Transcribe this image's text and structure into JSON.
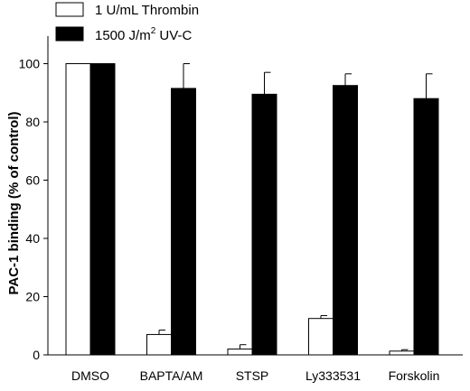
{
  "chart_data": {
    "type": "bar",
    "ylabel": "PAC-1 binding (% of control)",
    "xlabel": "",
    "title": "",
    "ylim": [
      0,
      110
    ],
    "yticks": [
      "0",
      "20",
      "40",
      "60",
      "80",
      "100"
    ],
    "categories": [
      "DMSO",
      "BAPTA/AM",
      "STSP",
      "Ly333531",
      "Forskolin"
    ],
    "series": [
      {
        "name": "1 U/mL Thrombin",
        "color": "#ffffff",
        "values": [
          100,
          7,
          2,
          12.5,
          1.3
        ],
        "errors": [
          0,
          1.5,
          1.5,
          1,
          0.5
        ]
      },
      {
        "name": "1500 J/m2 UV-C",
        "color": "#000000",
        "values": [
          100,
          91.5,
          89.5,
          92.5,
          88
        ],
        "errors": [
          0,
          8.5,
          7.5,
          4,
          8.5
        ]
      }
    ],
    "legend_position": "top-left",
    "grid": false
  },
  "legend": {
    "thrombin_label": "1 U/mL Thrombin",
    "uvc_label_main": "1500 J/m",
    "uvc_label_sup": "2",
    "uvc_label_tail": " UV-C"
  }
}
